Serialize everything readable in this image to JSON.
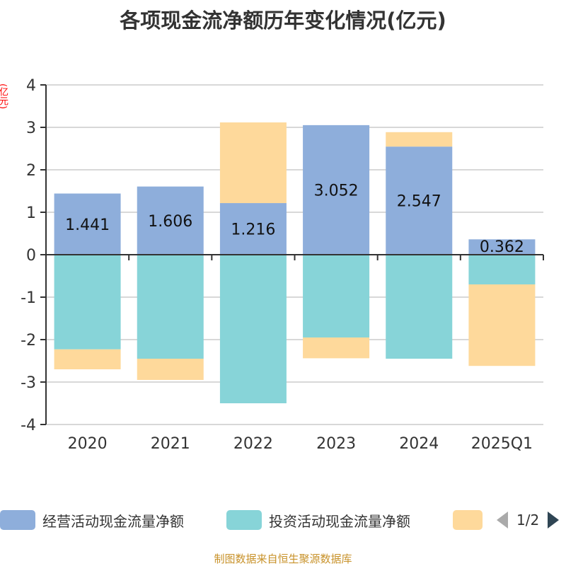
{
  "title": "各项现金流净额历年变化情况(亿元)",
  "unit_label": "(亿元)",
  "legend": {
    "items": [
      {
        "label": "经营活动现金流量净额",
        "color": "#8eaedb"
      },
      {
        "label": "投资活动现金流量净额",
        "color": "#87d4d8"
      },
      {
        "label": "",
        "color": "#fed99b"
      }
    ],
    "page": "1/2"
  },
  "source": "制图数据来自恒生聚源数据库",
  "chart_data": {
    "type": "bar",
    "stacked": true,
    "title": "各项现金流净额历年变化情况(亿元)",
    "ylabel": "(亿元)",
    "ylim": [
      -4,
      4
    ],
    "yticks": [
      "4",
      "3",
      "2",
      "1",
      "0",
      "-1",
      "-2",
      "-3",
      "-4"
    ],
    "categories": [
      "2020",
      "2021",
      "2022",
      "2023",
      "2024",
      "2025Q1"
    ],
    "series": [
      {
        "name": "经营活动现金流量净额",
        "color": "#8eaedb",
        "values": [
          1.441,
          1.606,
          1.216,
          3.052,
          2.547,
          0.362
        ],
        "labels": [
          "1.441",
          "1.606",
          "1.216",
          "3.052",
          "2.547",
          "0.362"
        ]
      },
      {
        "name": "投资活动现金流量净额",
        "color": "#87d4d8",
        "values": [
          -2.23,
          -2.45,
          -3.5,
          -1.95,
          -2.45,
          -0.7
        ]
      },
      {
        "name": "",
        "color": "#fed99b",
        "values": [
          -0.47,
          -0.5,
          1.9,
          -0.49,
          0.34,
          -1.92
        ]
      }
    ]
  }
}
